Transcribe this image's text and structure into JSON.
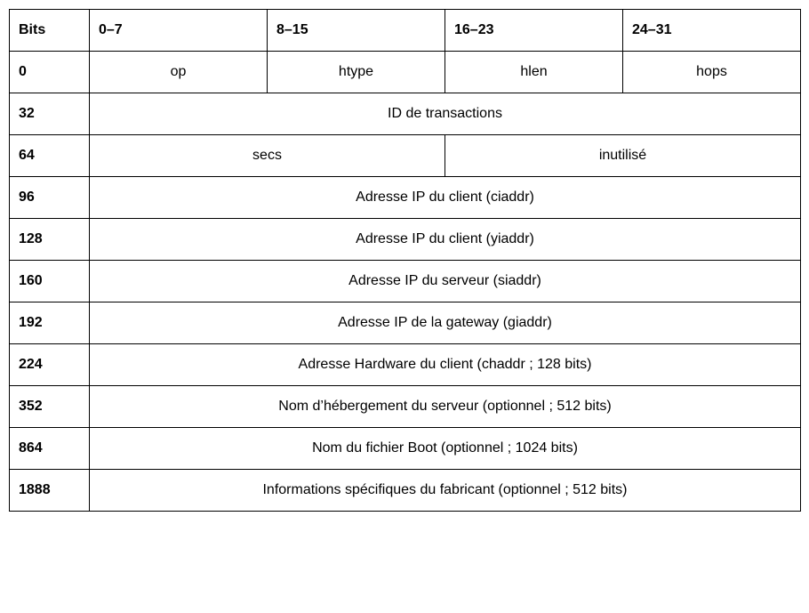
{
  "table": {
    "type": "table",
    "background_color": "#ffffff",
    "border_color": "#000000",
    "font_family": "Arial, sans-serif",
    "header_fontsize": 16,
    "cell_fontsize": 16,
    "header_fontweight": "bold",
    "cell_fontweight_label": "bold",
    "cell_fontweight_data": "normal",
    "header": {
      "bits_label": "Bits",
      "col1": "0–7",
      "col2": "8–15",
      "col3": "16–23",
      "col4": "24–31"
    },
    "rows": [
      {
        "offset": "0",
        "cells": [
          "op",
          "htype",
          "hlen",
          "hops"
        ],
        "colspans": [
          1,
          1,
          1,
          1
        ]
      },
      {
        "offset": "32",
        "cells": [
          "ID de transactions"
        ],
        "colspans": [
          4
        ]
      },
      {
        "offset": "64",
        "cells": [
          "secs",
          "inutilisé"
        ],
        "colspans": [
          2,
          2
        ]
      },
      {
        "offset": "96",
        "cells": [
          "Adresse IP du client (ciaddr)"
        ],
        "colspans": [
          4
        ]
      },
      {
        "offset": "128",
        "cells": [
          "Adresse IP du client (yiaddr)"
        ],
        "colspans": [
          4
        ]
      },
      {
        "offset": "160",
        "cells": [
          "Adresse IP du serveur (siaddr)"
        ],
        "colspans": [
          4
        ]
      },
      {
        "offset": "192",
        "cells": [
          "Adresse IP de la gateway (giaddr)"
        ],
        "colspans": [
          4
        ]
      },
      {
        "offset": "224",
        "cells": [
          "Adresse Hardware du client (chaddr ; 128 bits)"
        ],
        "colspans": [
          4
        ]
      },
      {
        "offset": "352",
        "cells": [
          "Nom d’hébergement du serveur (optionnel ; 512 bits)"
        ],
        "colspans": [
          4
        ]
      },
      {
        "offset": "864",
        "cells": [
          "Nom du fichier Boot (optionnel ; 1024 bits)"
        ],
        "colspans": [
          4
        ]
      },
      {
        "offset": "1888",
        "cells": [
          "Informations spécifiques du fabricant (optionnel ; 512 bits)"
        ],
        "colspans": [
          4
        ]
      }
    ],
    "column_widths": [
      "90px",
      "200px",
      "200px",
      "200px",
      "200px"
    ]
  }
}
